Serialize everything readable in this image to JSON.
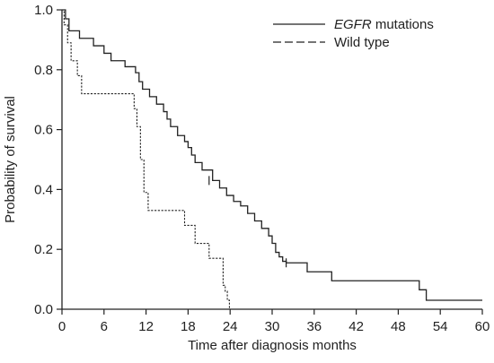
{
  "chart_data": {
    "type": "line",
    "subtype": "kaplan-meier",
    "xlabel": "Time after diagnosis months",
    "ylabel": "Probability of survival",
    "xlim": [
      0,
      60
    ],
    "ylim": [
      0,
      1.0
    ],
    "xticks": [
      0,
      6,
      12,
      18,
      24,
      30,
      36,
      42,
      48,
      54,
      60
    ],
    "yticks": [
      0.0,
      0.2,
      0.4,
      0.6,
      0.8,
      1.0
    ],
    "ytick_labels": [
      "0.0",
      "0.2",
      "0.4",
      "0.6",
      "0.8",
      "1.0"
    ],
    "grid": false,
    "legend_position": "top-right",
    "legend": [
      {
        "italic": "EGFR",
        "rest": " mutations",
        "style": "solid"
      },
      {
        "italic": "",
        "rest": "Wild type",
        "style": "dashed"
      }
    ],
    "series": [
      {
        "name": "EGFR mutations",
        "style": "solid",
        "x": [
          0,
          0.5,
          1,
          2.5,
          4.5,
          6,
          7,
          9,
          10.5,
          11,
          11.5,
          12.5,
          13.5,
          14.5,
          15,
          15.5,
          16.5,
          17.5,
          18,
          18.5,
          19,
          20,
          21.5,
          22.5,
          23.5,
          24.5,
          25.5,
          26.5,
          27.5,
          28.5,
          29.5,
          30,
          30.5,
          31,
          31.5,
          32,
          35,
          38.5,
          43,
          51,
          52,
          60
        ],
        "y": [
          1.0,
          0.97,
          0.93,
          0.905,
          0.88,
          0.855,
          0.83,
          0.81,
          0.79,
          0.76,
          0.735,
          0.71,
          0.685,
          0.66,
          0.635,
          0.61,
          0.58,
          0.56,
          0.54,
          0.515,
          0.49,
          0.465,
          0.43,
          0.405,
          0.38,
          0.36,
          0.345,
          0.32,
          0.295,
          0.27,
          0.245,
          0.22,
          0.19,
          0.175,
          0.16,
          0.155,
          0.125,
          0.095,
          0.095,
          0.065,
          0.03,
          0.03
        ],
        "censored": [
          {
            "x": 21,
            "y": 0.43
          },
          {
            "x": 32,
            "y": 0.155
          }
        ]
      },
      {
        "name": "Wild type",
        "style": "dashed",
        "x": [
          0,
          0.3,
          0.8,
          1.3,
          2.2,
          2.8,
          3.5,
          10.3,
          10.7,
          11.2,
          11.7,
          12.3,
          15.5,
          17.5,
          19,
          21,
          23,
          23.3,
          23.6,
          23.9
        ],
        "y": [
          1.0,
          0.95,
          0.89,
          0.83,
          0.78,
          0.72,
          0.72,
          0.67,
          0.61,
          0.5,
          0.39,
          0.33,
          0.33,
          0.28,
          0.22,
          0.17,
          0.08,
          0.06,
          0.03,
          0.0
        ]
      }
    ]
  }
}
